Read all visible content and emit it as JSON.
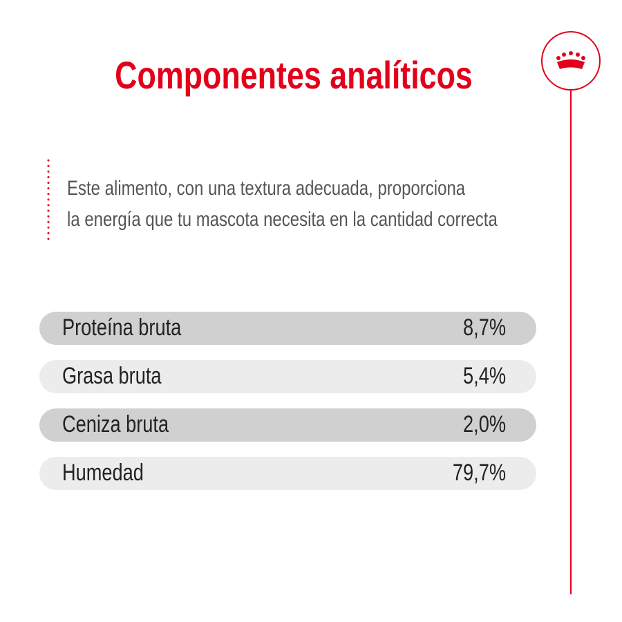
{
  "header": {
    "title": "Componentes analíticos"
  },
  "description": [
    "Este alimento, con una textura adecuada, proporciona",
    "la energía que tu mascota necesita en la cantidad correcta"
  ],
  "table": {
    "rows": [
      [
        "Proteína bruta",
        "8,7%"
      ],
      [
        "Grasa bruta",
        "5,4%"
      ],
      [
        "Ceniza bruta",
        "2,0%"
      ],
      [
        "Humedad",
        "79,7%"
      ]
    ]
  }
}
